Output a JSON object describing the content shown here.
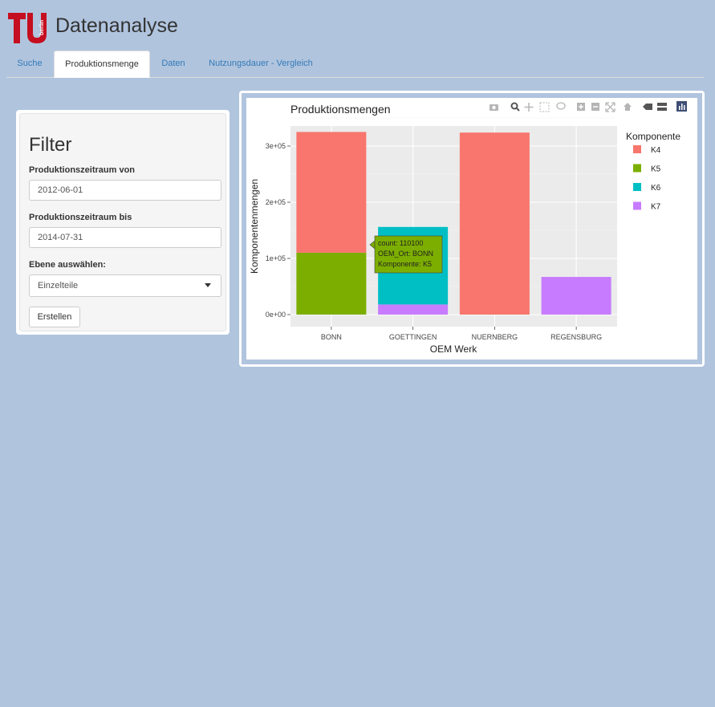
{
  "app": {
    "title": "Datenanalyse",
    "logo_text": "berlin"
  },
  "tabs": [
    {
      "label": "Suche",
      "active": false
    },
    {
      "label": "Produktionsmenge",
      "active": true
    },
    {
      "label": "Daten",
      "active": false
    },
    {
      "label": "Nutzungsdauer - Vergleich",
      "active": false
    }
  ],
  "filter": {
    "title": "Filter",
    "from_label": "Produktionszeitraum von",
    "from_value": "2012-06-01",
    "to_label": "Produktionszeitraum bis",
    "to_value": "2014-07-31",
    "level_label": "Ebene auswählen:",
    "level_value": "Einzelteile",
    "create_button": "Erstellen"
  },
  "toolbar": {
    "icons": [
      "camera-icon",
      "zoom-icon",
      "pan-icon",
      "box-select-icon",
      "lasso-select-icon",
      "zoom-in-icon",
      "zoom-out-icon",
      "autoscale-icon",
      "reset-axes-icon",
      "spike-lines-icon",
      "compare-data-icon",
      "plotly-logo-icon"
    ]
  },
  "tooltip": {
    "lines": [
      "count: 110100",
      "OEM_Ort: BONN",
      "Komponente: K5"
    ],
    "bg_color": "#7cae00"
  },
  "chart_data": {
    "type": "bar",
    "stacked": true,
    "title": "Produktionsmengen",
    "xlabel": "OEM Werk",
    "ylabel": "Komponentenmengen",
    "categories": [
      "BONN",
      "GOETTINGEN",
      "NUERNBERG",
      "REGENSBURG"
    ],
    "yticks": [
      "0e+00",
      "1e+05",
      "2e+05",
      "3e+05"
    ],
    "ylim": [
      0,
      360000
    ],
    "legend_title": "Komponente",
    "legend_position": "right",
    "series": [
      {
        "name": "K4",
        "color": "#f8766d",
        "values": [
          215000,
          0,
          324000,
          0
        ]
      },
      {
        "name": "K5",
        "color": "#7cae00",
        "values": [
          110100,
          0,
          0,
          0
        ]
      },
      {
        "name": "K6",
        "color": "#00bfc4",
        "values": [
          0,
          138000,
          0,
          0
        ]
      },
      {
        "name": "K7",
        "color": "#c77cff",
        "values": [
          0,
          18000,
          0,
          67000
        ]
      }
    ],
    "stack_order": [
      "K5",
      "K7",
      "K4",
      "K6"
    ],
    "grid": true
  }
}
